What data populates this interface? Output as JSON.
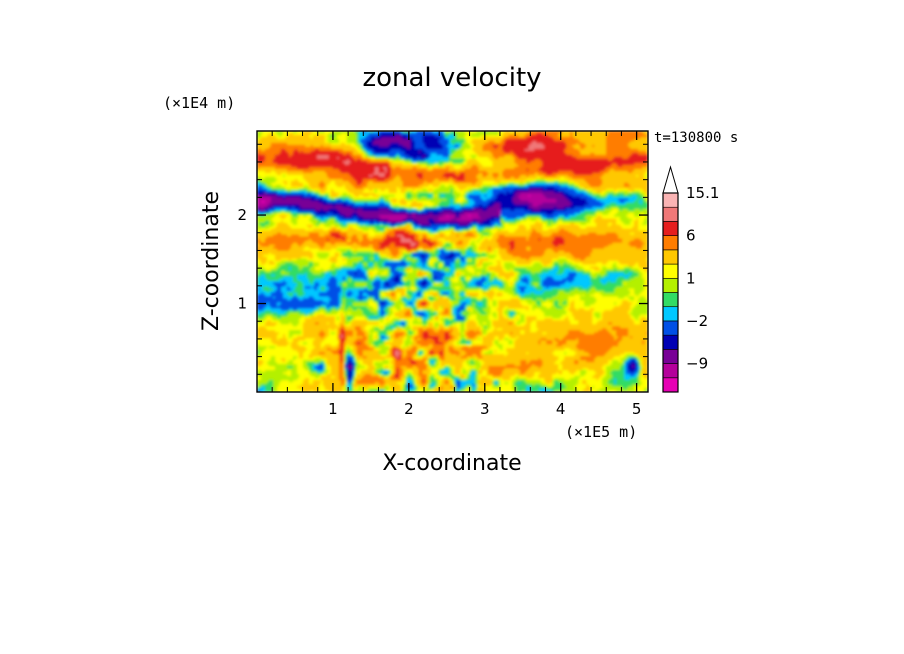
{
  "chart_data": {
    "type": "heatmap",
    "title": "zonal velocity",
    "time_label": "t=130800 s",
    "x_axis": {
      "label": "X-coordinate",
      "multiplier": "(×1E5 m)",
      "range": [
        0.0,
        5.15
      ],
      "ticks": [
        1,
        2,
        3,
        4,
        5
      ],
      "tick_labels": [
        "1",
        "2",
        "3",
        "4",
        "5"
      ]
    },
    "y_axis": {
      "label": "Z-coordinate",
      "multiplier": "(×1E4 m)",
      "range": [
        0.0,
        2.95
      ],
      "ticks": [
        1,
        2
      ],
      "tick_labels": [
        "1",
        "2"
      ]
    },
    "colorbar": {
      "levels_low_to_high": [
        -15,
        -12,
        -9,
        -6,
        -4,
        -2,
        -1,
        0,
        1,
        2,
        4,
        6,
        9,
        12,
        15.1
      ],
      "colors_low_to_high": [
        "#e600b4",
        "#b4009b",
        "#780096",
        "#0000b4",
        "#0050e6",
        "#00c8ff",
        "#32dc64",
        "#b4f000",
        "#ffff00",
        "#ffc800",
        "#ff7d00",
        "#e61e1e",
        "#f07878",
        "#fab4b4",
        "#ffffff"
      ],
      "labeled_values": [
        "15.1",
        "6",
        "1",
        "−2",
        "−9"
      ],
      "extend": "max"
    }
  }
}
